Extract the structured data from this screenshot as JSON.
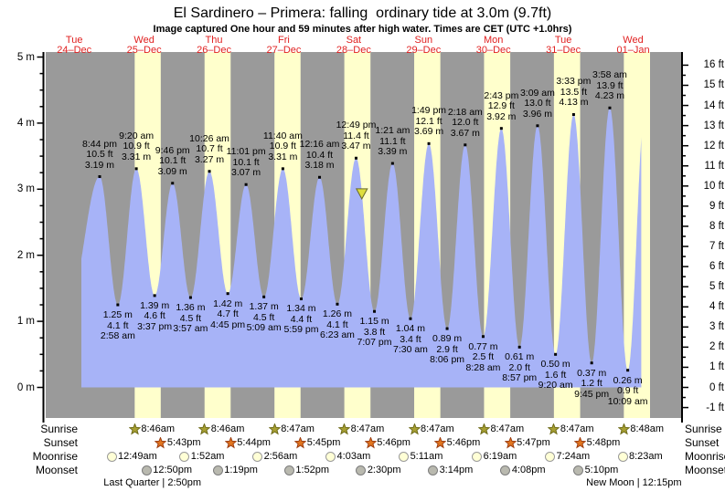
{
  "title": "El Sardinero – Primera: falling  ordinary tide at 3.0m (9.7ft)",
  "subtitle": "Image captured One hour and 59 minutes after high water. Times are CET (UTC +1.0hrs)",
  "colors": {
    "night_band": "#9a9a9a",
    "daylight_band": "#ffffcc",
    "tide_fill": "#a7b3f7",
    "date_label": "#e02020",
    "axis": "#000000",
    "sunrise_star_fill": "#a8a033",
    "sunrise_star_stroke": "#6f6c1a",
    "sunset_star_fill": "#e2761f",
    "sunset_star_stroke": "#9c3d10",
    "moonrise_circle_fill": "#ffffd6",
    "moonrise_circle_stroke": "#9a9a9a",
    "moonset_circle_fill": "#b9b9af",
    "moonset_circle_stroke": "#7d7d7d",
    "capture_marker_fill": "#dede3f",
    "capture_marker_stroke": "#6a6a28"
  },
  "chart_data": {
    "type": "area",
    "title": "El Sardinero – Primera tide curve",
    "legend": "none",
    "grid": "off",
    "x_axis_days": [
      {
        "name": "Tue",
        "date": "24–Dec"
      },
      {
        "name": "Wed",
        "date": "25–Dec"
      },
      {
        "name": "Thu",
        "date": "26–Dec"
      },
      {
        "name": "Fri",
        "date": "27–Dec"
      },
      {
        "name": "Sat",
        "date": "28–Dec"
      },
      {
        "name": "Sun",
        "date": "29–Dec"
      },
      {
        "name": "Mon",
        "date": "30–Dec"
      },
      {
        "name": "Tue",
        "date": "31–Dec"
      },
      {
        "name": "Wed",
        "date": "01–Jan"
      }
    ],
    "y_axis_left_unit": "m",
    "y_axis_left_ticks": [
      "5 m",
      "4 m",
      "3 m",
      "2 m",
      "1 m",
      "0 m"
    ],
    "y_axis_left_values": [
      5,
      4,
      3,
      2,
      1,
      0
    ],
    "y_axis_right_unit": "ft",
    "y_axis_right_ticks": [
      "16 ft",
      "15 ft",
      "14 ft",
      "13 ft",
      "12 ft",
      "11 ft",
      "10 ft",
      "9 ft",
      "8 ft",
      "7 ft",
      "6 ft",
      "5 ft",
      "4 ft",
      "3 ft",
      "2 ft",
      "1 ft",
      "0 ft",
      "-1 ft"
    ],
    "y_axis_right_values": [
      16,
      15,
      14,
      13,
      12,
      11,
      10,
      9,
      8,
      7,
      6,
      5,
      4,
      3,
      2,
      1,
      0,
      -1
    ],
    "ylim_m": [
      -0.46,
      5.08
    ],
    "x_range_hours_from_24dec_0000": [
      2.2,
      220.6
    ],
    "tide_events": [
      {
        "kind": "high",
        "time": "8:44 pm",
        "ft": "10.5 ft",
        "m": "3.19 m",
        "hours": 20.73,
        "height_m": 3.19
      },
      {
        "kind": "low",
        "time": "2:58 am",
        "ft": "4.1 ft",
        "m": "1.25 m",
        "hours": 26.97,
        "height_m": 1.25
      },
      {
        "kind": "high",
        "time": "9:20 am",
        "ft": "10.9 ft",
        "m": "3.31 m",
        "hours": 33.33,
        "height_m": 3.31
      },
      {
        "kind": "low",
        "time": "3:37 pm",
        "ft": "4.6 ft",
        "m": "1.39 m",
        "hours": 39.62,
        "height_m": 1.39
      },
      {
        "kind": "high",
        "time": "9:46 pm",
        "ft": "10.1 ft",
        "m": "3.09 m",
        "hours": 45.77,
        "height_m": 3.09
      },
      {
        "kind": "low",
        "time": "3:57 am",
        "ft": "4.5 ft",
        "m": "1.36 m",
        "hours": 51.95,
        "height_m": 1.36
      },
      {
        "kind": "high",
        "time": "10:26 am",
        "ft": "10.7 ft",
        "m": "3.27 m",
        "hours": 58.43,
        "height_m": 3.27
      },
      {
        "kind": "low",
        "time": "4:45 pm",
        "ft": "4.7 ft",
        "m": "1.42 m",
        "hours": 64.75,
        "height_m": 1.42
      },
      {
        "kind": "high",
        "time": "11:01 pm",
        "ft": "10.1 ft",
        "m": "3.07 m",
        "hours": 71.02,
        "height_m": 3.07
      },
      {
        "kind": "low",
        "time": "5:09 am",
        "ft": "4.5 ft",
        "m": "1.37 m",
        "hours": 77.15,
        "height_m": 1.37
      },
      {
        "kind": "high",
        "time": "11:40 am",
        "ft": "10.9 ft",
        "m": "3.31 m",
        "hours": 83.67,
        "height_m": 3.31
      },
      {
        "kind": "low",
        "time": "5:59 pm",
        "ft": "4.4 ft",
        "m": "1.34 m",
        "hours": 89.98,
        "height_m": 1.34
      },
      {
        "kind": "high",
        "time": "12:16 am",
        "ft": "10.4 ft",
        "m": "3.18 m",
        "hours": 96.27,
        "height_m": 3.18
      },
      {
        "kind": "low",
        "time": "6:23 am",
        "ft": "4.1 ft",
        "m": "1.26 m",
        "hours": 102.38,
        "height_m": 1.26
      },
      {
        "kind": "high",
        "time": "12:49 pm",
        "ft": "11.4 ft",
        "m": "3.47 m",
        "hours": 108.82,
        "height_m": 3.47
      },
      {
        "kind": "low",
        "time": "7:07 pm",
        "ft": "3.8 ft",
        "m": "1.15 m",
        "hours": 115.12,
        "height_m": 1.15
      },
      {
        "kind": "high",
        "time": "1:21 am",
        "ft": "11.1 ft",
        "m": "3.39 m",
        "hours": 121.35,
        "height_m": 3.39
      },
      {
        "kind": "low",
        "time": "7:30 am",
        "ft": "3.4 ft",
        "m": "1.04 m",
        "hours": 127.5,
        "height_m": 1.04
      },
      {
        "kind": "high",
        "time": "1:49 pm",
        "ft": "12.1 ft",
        "m": "3.69 m",
        "hours": 133.82,
        "height_m": 3.69
      },
      {
        "kind": "low",
        "time": "8:06 pm",
        "ft": "2.9 ft",
        "m": "0.89 m",
        "hours": 140.1,
        "height_m": 0.89
      },
      {
        "kind": "high",
        "time": "2:18 am",
        "ft": "12.0 ft",
        "m": "3.67 m",
        "hours": 146.3,
        "height_m": 3.67
      },
      {
        "kind": "low",
        "time": "8:28 am",
        "ft": "2.5 ft",
        "m": "0.77 m",
        "hours": 152.47,
        "height_m": 0.77
      },
      {
        "kind": "high",
        "time": "2:43 pm",
        "ft": "12.9 ft",
        "m": "3.92 m",
        "hours": 158.72,
        "height_m": 3.92
      },
      {
        "kind": "low",
        "time": "8:57 pm",
        "ft": "2.0 ft",
        "m": "0.61 m",
        "hours": 164.95,
        "height_m": 0.61
      },
      {
        "kind": "high",
        "time": "3:09 am",
        "ft": "13.0 ft",
        "m": "3.96 m",
        "hours": 171.15,
        "height_m": 3.96
      },
      {
        "kind": "low",
        "time": "9:20 am",
        "ft": "1.6 ft",
        "m": "0.50 m",
        "hours": 177.33,
        "height_m": 0.5
      },
      {
        "kind": "high",
        "time": "3:33 pm",
        "ft": "13.5 ft",
        "m": "4.13 m",
        "hours": 183.55,
        "height_m": 4.13
      },
      {
        "kind": "low",
        "time": "9:45 pm",
        "ft": "1.2 ft",
        "m": "0.37 m",
        "hours": 189.75,
        "height_m": 0.37
      },
      {
        "kind": "high",
        "time": "3:58 am",
        "ft": "13.9 ft",
        "m": "4.23 m",
        "hours": 195.97,
        "height_m": 4.23
      },
      {
        "kind": "low",
        "time": "10:09 am",
        "ft": "0.9 ft",
        "m": "0.26 m",
        "hours": 202.15,
        "height_m": 0.26
      }
    ],
    "capture_marker": {
      "hours": 110.8,
      "height_m": 2.95
    }
  },
  "astro": {
    "row_labels": [
      "Sunrise",
      "Sunset",
      "Moonrise",
      "Moonset"
    ],
    "sunrise": [
      {
        "time": "8:46am",
        "hours": 32.77
      },
      {
        "time": "8:46am",
        "hours": 56.77
      },
      {
        "time": "8:47am",
        "hours": 80.78
      },
      {
        "time": "8:47am",
        "hours": 104.78
      },
      {
        "time": "8:47am",
        "hours": 128.78
      },
      {
        "time": "8:47am",
        "hours": 152.78
      },
      {
        "time": "8:47am",
        "hours": 176.78
      },
      {
        "time": "8:48am",
        "hours": 200.8
      }
    ],
    "sunset": [
      {
        "time": "5:43pm",
        "hours": 41.72
      },
      {
        "time": "5:44pm",
        "hours": 65.73
      },
      {
        "time": "5:45pm",
        "hours": 89.75
      },
      {
        "time": "5:46pm",
        "hours": 113.77
      },
      {
        "time": "5:46pm",
        "hours": 137.77
      },
      {
        "time": "5:47pm",
        "hours": 161.78
      },
      {
        "time": "5:48pm",
        "hours": 185.8
      }
    ],
    "moonrise": [
      {
        "time": "12:49am",
        "hours": 24.82
      },
      {
        "time": "1:52am",
        "hours": 49.87
      },
      {
        "time": "2:56am",
        "hours": 74.93
      },
      {
        "time": "4:03am",
        "hours": 100.05
      },
      {
        "time": "5:11am",
        "hours": 125.18
      },
      {
        "time": "6:19am",
        "hours": 150.32
      },
      {
        "time": "7:24am",
        "hours": 175.4
      },
      {
        "time": "8:23am",
        "hours": 200.38
      }
    ],
    "moonset": [
      {
        "time": "12:50pm",
        "hours": 36.83
      },
      {
        "time": "1:19pm",
        "hours": 61.32
      },
      {
        "time": "1:52pm",
        "hours": 85.87
      },
      {
        "time": "2:30pm",
        "hours": 110.5
      },
      {
        "time": "3:14pm",
        "hours": 135.23
      },
      {
        "time": "4:08pm",
        "hours": 160.13
      },
      {
        "time": "5:10pm",
        "hours": 185.17
      }
    ],
    "phases": [
      {
        "label": "Last Quarter | 2:50pm",
        "hours": 38.83
      },
      {
        "label": "New Moon | 12:15pm",
        "hours": 204.25
      }
    ]
  }
}
